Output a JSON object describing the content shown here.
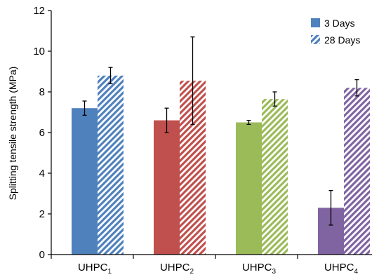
{
  "chart_data": {
    "type": "bar",
    "title": "",
    "xlabel": "",
    "ylabel": "Splitting tensile strength (MPa)",
    "ylim": [
      0,
      12
    ],
    "yticks": [
      0,
      2,
      4,
      6,
      8,
      10,
      12
    ],
    "grid": false,
    "legend_position": "top-right",
    "categories": [
      {
        "base": "UHPC",
        "sub": "1"
      },
      {
        "base": "UHPC",
        "sub": "2"
      },
      {
        "base": "UHPC",
        "sub": "3"
      },
      {
        "base": "UHPC",
        "sub": "4"
      }
    ],
    "category_colors": [
      "#4f81bd",
      "#c0504d",
      "#9bbb59",
      "#8064a2"
    ],
    "series": [
      {
        "name": "3 Days",
        "pattern": "solid",
        "values": [
          7.2,
          6.6,
          6.5,
          2.3
        ],
        "error": [
          0.35,
          0.6,
          0.1,
          0.85
        ]
      },
      {
        "name": "28 Days",
        "pattern": "hatched",
        "values": [
          8.8,
          8.55,
          7.65,
          8.2
        ],
        "error": [
          0.4,
          2.15,
          0.35,
          0.4
        ]
      }
    ]
  }
}
